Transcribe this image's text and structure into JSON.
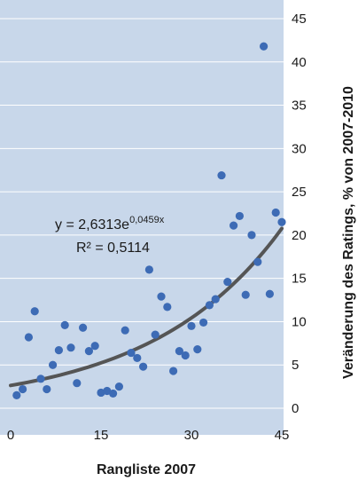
{
  "colors": {
    "plot_background": "#c8d7ea",
    "gridline": "#ffffff",
    "point": "#3d6bb5",
    "trendline": "#555555"
  },
  "chart_data": {
    "type": "scatter",
    "xlabel": "Rangliste 2007",
    "ylabel": "Veränderung des Ratings, % von 2007-2010",
    "xlim": [
      0,
      45
    ],
    "ylim": [
      0,
      45
    ],
    "x_ticks": [
      "0",
      "15",
      "30",
      "45"
    ],
    "y_ticks": [
      "0",
      "5",
      "10",
      "15",
      "20",
      "25",
      "30",
      "35",
      "40",
      "45"
    ],
    "y_axis_side": "right",
    "grid": "horizontal",
    "trendline": {
      "type": "exponential",
      "a": 2.6313,
      "b": 0.0459,
      "equation_main": "y = 2,6313e",
      "equation_exp": "0,0459x",
      "r_squared": "R² = 0,5114"
    },
    "points": [
      {
        "x": 1,
        "y": 1.5
      },
      {
        "x": 2,
        "y": 2.2
      },
      {
        "x": 3,
        "y": 8.2
      },
      {
        "x": 4,
        "y": 11.2
      },
      {
        "x": 5,
        "y": 3.4
      },
      {
        "x": 6,
        "y": 2.2
      },
      {
        "x": 7,
        "y": 5.0
      },
      {
        "x": 8,
        "y": 6.7
      },
      {
        "x": 9,
        "y": 9.6
      },
      {
        "x": 10,
        "y": 7.0
      },
      {
        "x": 11,
        "y": 2.9
      },
      {
        "x": 12,
        "y": 9.3
      },
      {
        "x": 13,
        "y": 6.6
      },
      {
        "x": 14,
        "y": 7.2
      },
      {
        "x": 15,
        "y": 1.8
      },
      {
        "x": 16,
        "y": 2.0
      },
      {
        "x": 17,
        "y": 1.7
      },
      {
        "x": 18,
        "y": 2.5
      },
      {
        "x": 19,
        "y": 9.0
      },
      {
        "x": 20,
        "y": 6.4
      },
      {
        "x": 21,
        "y": 5.8
      },
      {
        "x": 22,
        "y": 4.8
      },
      {
        "x": 23,
        "y": 16.0
      },
      {
        "x": 24,
        "y": 8.5
      },
      {
        "x": 25,
        "y": 12.9
      },
      {
        "x": 26,
        "y": 11.7
      },
      {
        "x": 27,
        "y": 4.3
      },
      {
        "x": 28,
        "y": 6.6
      },
      {
        "x": 29,
        "y": 6.1
      },
      {
        "x": 30,
        "y": 9.5
      },
      {
        "x": 31,
        "y": 6.8
      },
      {
        "x": 32,
        "y": 9.9
      },
      {
        "x": 33,
        "y": 11.9
      },
      {
        "x": 34,
        "y": 12.6
      },
      {
        "x": 35,
        "y": 26.9
      },
      {
        "x": 36,
        "y": 14.6
      },
      {
        "x": 37,
        "y": 21.1
      },
      {
        "x": 38,
        "y": 22.2
      },
      {
        "x": 39,
        "y": 13.1
      },
      {
        "x": 40,
        "y": 20.0
      },
      {
        "x": 41,
        "y": 16.9
      },
      {
        "x": 42,
        "y": 41.8
      },
      {
        "x": 43,
        "y": 13.2
      },
      {
        "x": 44,
        "y": 22.6
      },
      {
        "x": 45,
        "y": 21.5
      }
    ]
  }
}
